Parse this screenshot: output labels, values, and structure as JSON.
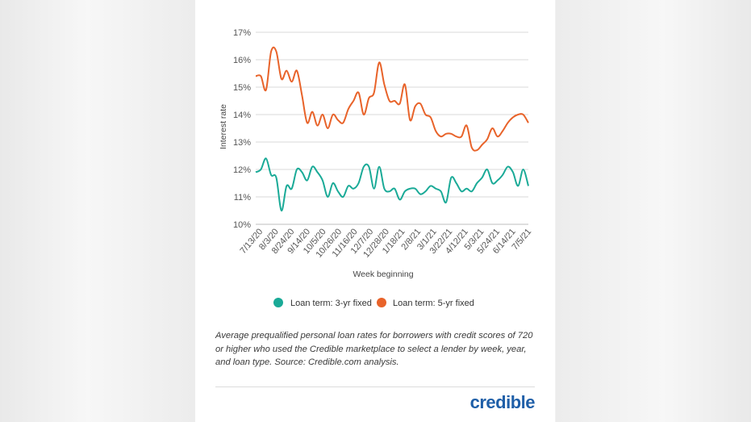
{
  "chart_data": {
    "type": "line",
    "xlabel": "Week beginning",
    "ylabel": "Interest rate",
    "ylim": [
      10,
      17
    ],
    "y_tick_labels": [
      "10%",
      "11%",
      "12%",
      "13%",
      "14%",
      "15%",
      "16%",
      "17%"
    ],
    "x_tick_labels": [
      "7/13/20",
      "8/3/20",
      "8/24/20",
      "9/14/20",
      "10/5/20",
      "10/26/20",
      "11/16/20",
      "12/7/20",
      "12/28/20",
      "1/18/21",
      "2/8/21",
      "3/1/21",
      "3/22/21",
      "4/12/21",
      "5/3/21",
      "5/24/21",
      "6/14/21",
      "7/5/21"
    ],
    "grid": "horizontal",
    "legend_position": "bottom",
    "series": [
      {
        "name": "Loan term: 3-yr fixed",
        "color": "#1aaa97",
        "values": [
          11.9,
          12.0,
          12.4,
          11.8,
          11.7,
          10.5,
          11.4,
          11.3,
          12.0,
          11.9,
          11.6,
          12.1,
          11.9,
          11.6,
          11.0,
          11.5,
          11.2,
          11.0,
          11.4,
          11.3,
          11.5,
          12.1,
          12.1,
          11.3,
          12.1,
          11.3,
          11.2,
          11.3,
          10.9,
          11.2,
          11.3,
          11.3,
          11.1,
          11.2,
          11.4,
          11.3,
          11.2,
          10.8,
          11.7,
          11.5,
          11.2,
          11.3,
          11.2,
          11.5,
          11.7,
          12.0,
          11.5,
          11.6,
          11.8,
          12.1,
          11.9,
          11.4,
          12.0,
          11.4
        ]
      },
      {
        "name": "Loan term: 5-yr fixed",
        "color": "#e8632a",
        "values": [
          15.4,
          15.4,
          14.9,
          16.3,
          16.3,
          15.3,
          15.6,
          15.2,
          15.6,
          14.7,
          13.7,
          14.1,
          13.6,
          14.0,
          13.5,
          14.0,
          13.8,
          13.7,
          14.2,
          14.5,
          14.8,
          14.0,
          14.6,
          14.8,
          15.9,
          15.1,
          14.5,
          14.5,
          14.4,
          15.1,
          13.8,
          14.3,
          14.4,
          14.0,
          13.9,
          13.4,
          13.2,
          13.3,
          13.3,
          13.2,
          13.2,
          13.6,
          12.8,
          12.7,
          12.9,
          13.1,
          13.5,
          13.2,
          13.4,
          13.7,
          13.9,
          14.0,
          14.0,
          13.7
        ]
      }
    ]
  },
  "caption": "Average prequalified personal loan rates for borrowers with credit scores of 720 or higher who used the Credible marketplace to select a lender by week, year, and loan type. Source: Credible.com analysis.",
  "logo": "credible"
}
